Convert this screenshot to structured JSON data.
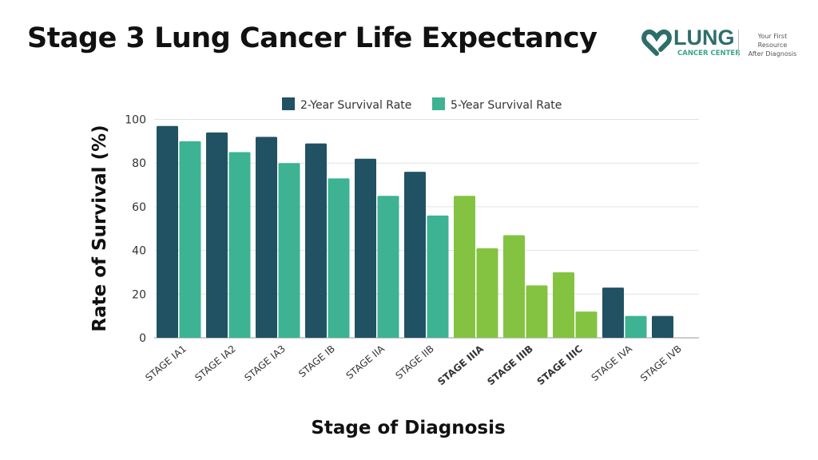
{
  "title": "Stage 3 Lung Cancer Life Expectancy",
  "logo": {
    "name": "LUNG",
    "sub": "CANCER CENTER",
    "tagline_1": "Your First Resource",
    "tagline_2": "After Diagnosis"
  },
  "colors": {
    "two_year": "#215264",
    "five_year": "#3db393",
    "stage3_highlight": "#84c341"
  },
  "chart_data": {
    "type": "bar",
    "xlabel": "Stage of Diagnosis",
    "ylabel": "Rate of Survival (%)",
    "ylim": [
      0,
      100
    ],
    "yticks": [
      0,
      20,
      40,
      60,
      80,
      100
    ],
    "grid": true,
    "legend_position": "top",
    "categories": [
      "STAGE IA1",
      "STAGE IA2",
      "STAGE IA3",
      "STAGE IB",
      "STAGE IIA",
      "STAGE IIB",
      "STAGE IIIA",
      "STAGE IIIB",
      "STAGE IIIC",
      "STAGE IVA",
      "STAGE IVB"
    ],
    "highlighted_categories": [
      "STAGE IIIA",
      "STAGE IIIB",
      "STAGE IIIC"
    ],
    "series": [
      {
        "name": "2-Year Survival Rate",
        "values": [
          97,
          94,
          92,
          89,
          82,
          76,
          65,
          47,
          30,
          23,
          10
        ]
      },
      {
        "name": "5-Year Survival Rate",
        "values": [
          90,
          85,
          80,
          73,
          65,
          56,
          41,
          24,
          12,
          10,
          null
        ]
      }
    ]
  }
}
